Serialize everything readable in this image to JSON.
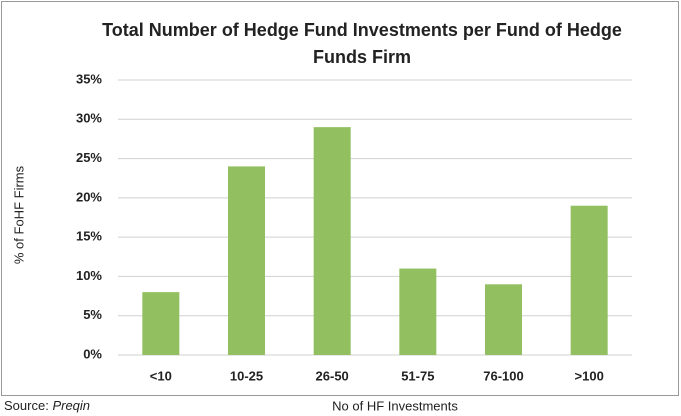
{
  "chart_data": {
    "type": "bar",
    "title": [
      "Total Number of Hedge Fund Investments per Fund of Hedge",
      "Funds Firm"
    ],
    "categories": [
      "<10",
      "10-25",
      "26-50",
      "51-75",
      "76-100",
      ">100"
    ],
    "values": [
      8,
      24,
      29,
      11,
      9,
      19
    ],
    "color": "#92bf5f",
    "ylim": [
      0,
      35
    ],
    "yticks": [
      {
        "value": 0,
        "label": "0%"
      },
      {
        "value": 5,
        "label": "5%"
      },
      {
        "value": 10,
        "label": "10%"
      },
      {
        "value": 15,
        "label": "15%"
      },
      {
        "value": 20,
        "label": "20%"
      },
      {
        "value": 25,
        "label": "25%"
      },
      {
        "value": 30,
        "label": "30%"
      },
      {
        "value": 35,
        "label": "35%"
      }
    ],
    "grid": true,
    "xlabel": "No of HF Investments",
    "ylabel": "% of FoHF Firms",
    "source_label": "Source:",
    "source_name": "Preqin"
  }
}
